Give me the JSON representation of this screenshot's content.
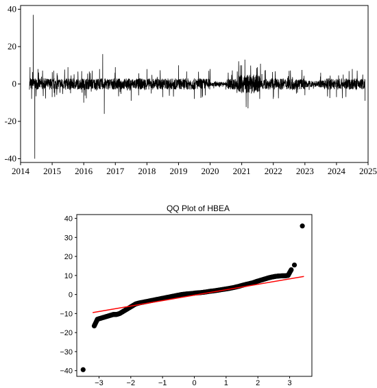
{
  "chart_data": [
    {
      "type": "line",
      "title": "",
      "xlabel": "",
      "ylabel": "",
      "x_ticks": [
        "2014",
        "2015",
        "2016",
        "2017",
        "2018",
        "2019",
        "2020",
        "2021",
        "2022",
        "2023",
        "2024",
        "2025"
      ],
      "y_ticks": [
        "40",
        "20",
        "0",
        "-20",
        "-40"
      ],
      "xlim": [
        2014.0,
        2025.0
      ],
      "ylim": [
        -42,
        42
      ],
      "grid": false,
      "series": [
        {
          "color": "#000000",
          "description_points": {
            "x": [
              2014.3,
              2014.35,
              2014.4,
              2014.45,
              2014.55,
              2015.0,
              2015.5,
              2016.0,
              2016.5,
              2016.6,
              2016.65,
              2017.0,
              2017.5,
              2018.0,
              2018.5,
              2019.0,
              2019.5,
              2020.0,
              2020.5,
              2021.0,
              2021.1,
              2021.2,
              2021.5,
              2022.0,
              2022.5,
              2023.0,
              2023.5,
              2024.0,
              2024.5,
              2024.9
            ],
            "y": [
              9,
              -8,
              37,
              -40,
              8,
              -7,
              9,
              -10,
              8,
              16,
              -16,
              9,
              -9,
              8,
              -7,
              10,
              -8,
              8,
              -3,
              10,
              13,
              -13,
              9,
              -8,
              7,
              -6,
              6,
              -7,
              8,
              -9
            ]
          }
        }
      ]
    },
    {
      "type": "scatter",
      "title": "QQ Plot of HBEA",
      "xlabel": "",
      "ylabel": "",
      "x_ticks": [
        "-3",
        "-2",
        "-1",
        "0",
        "1",
        "2",
        "3"
      ],
      "y_ticks": [
        "40",
        "30",
        "20",
        "10",
        "0",
        "-10",
        "-20",
        "-30",
        "-40"
      ],
      "xlim": [
        -3.7,
        3.7
      ],
      "ylim": [
        -43,
        42
      ],
      "marker_color": "#000000",
      "reference_line": {
        "color": "#ff0000",
        "x": [
          -3.2,
          3.45
        ],
        "y": [
          -9.5,
          9.5
        ]
      },
      "points": {
        "x": [
          -3.5,
          -3.15,
          -3.05,
          -2.95,
          -2.85,
          -2.75,
          -2.65,
          -2.55,
          -2.45,
          -2.35,
          -2.25,
          -2.15,
          -2.05,
          -1.95,
          -1.85,
          -1.75,
          -1.6,
          -1.45,
          -1.3,
          -1.15,
          -1.0,
          -0.85,
          -0.7,
          -0.55,
          -0.4,
          -0.25,
          -0.1,
          0.05,
          0.2,
          0.35,
          0.5,
          0.65,
          0.8,
          0.95,
          1.1,
          1.25,
          1.4,
          1.55,
          1.7,
          1.85,
          1.95,
          2.05,
          2.15,
          2.25,
          2.35,
          2.45,
          2.55,
          2.65,
          2.75,
          2.85,
          2.95,
          3.05,
          3.15,
          3.4
        ],
        "y": [
          -39.5,
          -16.5,
          -13.0,
          -12.5,
          -12.0,
          -11.5,
          -11.0,
          -10.5,
          -10.5,
          -10.0,
          -9.0,
          -8.0,
          -7.0,
          -6.0,
          -5.0,
          -4.5,
          -4.0,
          -3.5,
          -3.0,
          -2.5,
          -2.0,
          -1.5,
          -1.0,
          -0.5,
          0.0,
          0.3,
          0.5,
          0.8,
          1.0,
          1.3,
          1.7,
          2.0,
          2.4,
          2.8,
          3.2,
          3.7,
          4.3,
          5.0,
          5.6,
          6.2,
          6.8,
          7.3,
          7.8,
          8.3,
          8.8,
          9.2,
          9.5,
          9.7,
          9.8,
          9.8,
          10.0,
          13.0,
          15.5,
          36.0
        ]
      }
    }
  ]
}
